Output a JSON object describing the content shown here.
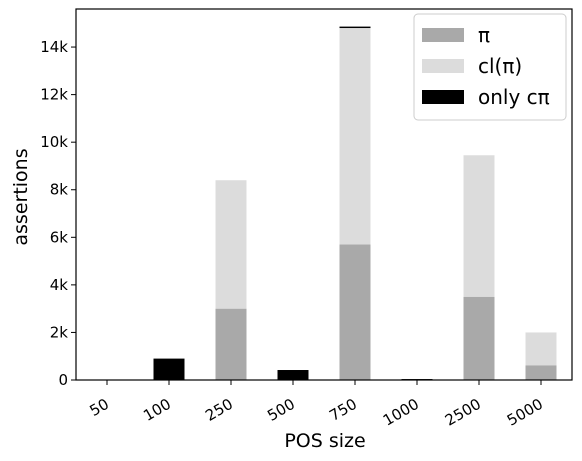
{
  "chart_data": {
    "type": "bar",
    "stacked": true,
    "categories": [
      "50",
      "100",
      "250",
      "500",
      "750",
      "1000",
      "2500",
      "5000"
    ],
    "series": [
      {
        "name": "π",
        "color": "#a9a9a9",
        "values": [
          0,
          0,
          3000,
          0,
          5700,
          0,
          3500,
          620
        ]
      },
      {
        "name": "cl(π)",
        "color": "#dcdcdc",
        "values": [
          0,
          0,
          5400,
          0,
          9100,
          0,
          5950,
          1380
        ]
      },
      {
        "name": "only cπ",
        "color": "#000000",
        "values": [
          0,
          900,
          0,
          420,
          60,
          40,
          0,
          0
        ]
      }
    ],
    "xlabel": "POS size",
    "ylabel": "assertions",
    "ylim": [
      0,
      15600
    ],
    "yticks": [
      0,
      2000,
      4000,
      6000,
      8000,
      10000,
      12000,
      14000
    ],
    "ytick_labels": [
      "0",
      "2k",
      "4k",
      "6k",
      "8k",
      "10k",
      "12k",
      "14k"
    ],
    "legend_position": "upper-right",
    "grid": false
  }
}
